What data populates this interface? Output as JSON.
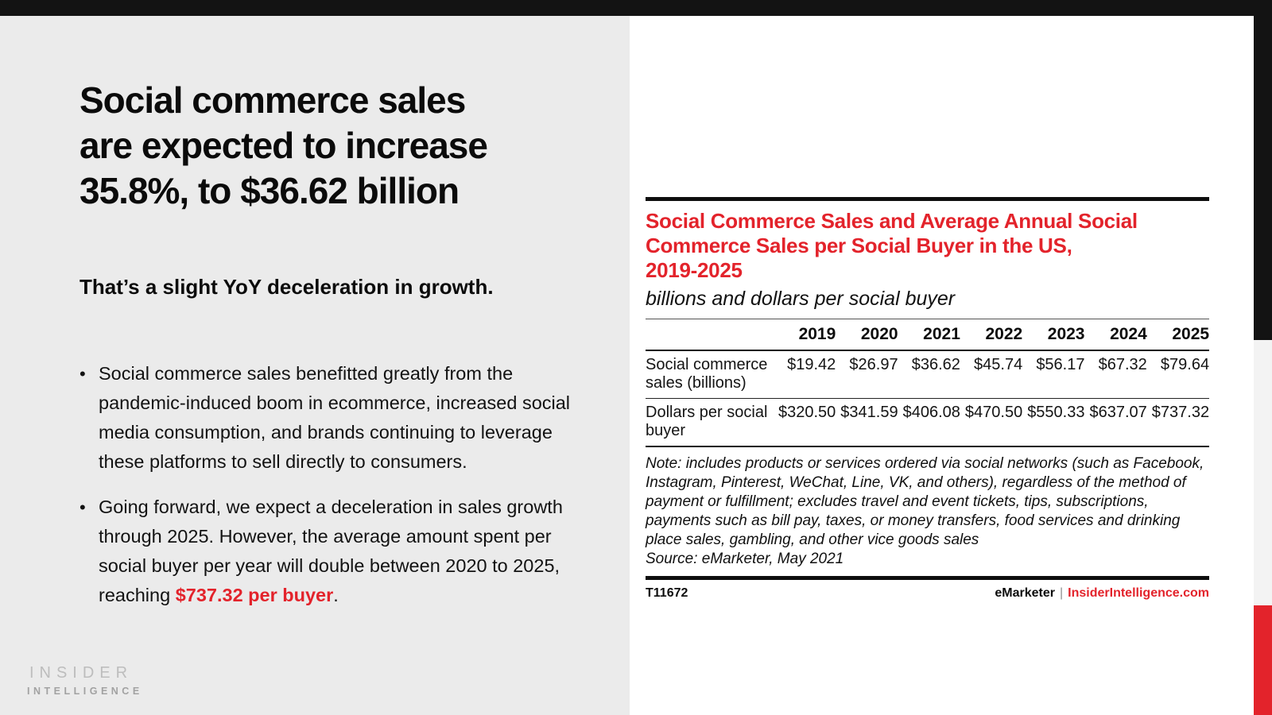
{
  "slide": {
    "headline_lines": [
      "Social commerce sales",
      "are expected to increase",
      "35.8%, to $36.62 billion"
    ],
    "subheadline": "That’s a slight YoY deceleration in growth.",
    "bullet_marker": "•",
    "bullets": [
      {
        "text": "Social commerce sales benefitted greatly from the pandemic-induced boom in ecommerce, increased social media consumption, and brands continuing to leverage these platforms to sell directly to consumers."
      },
      {
        "text_before": "Going forward, we expect a deceleration in sales growth through 2025. However, the average amount spent per social buyer per year will double between 2020 to 2025, reaching ",
        "highlight": "$737.32 per buyer",
        "text_after": "."
      }
    ],
    "logo": {
      "line1": "INSIDER",
      "line2": "INTELLIGENCE"
    }
  },
  "chart": {
    "title_lines": [
      "Social Commerce Sales and Average Annual Social",
      "Commerce Sales per Social Buyer in the US,",
      "2019-2025"
    ],
    "subtitle": "billions and dollars per social buyer",
    "note": "Note: includes products or services ordered via social networks (such as Facebook, Instagram, Pinterest, WeChat, Line, VK, and others), regardless of the method of payment or fulfillment; excludes travel and event tickets, tips, subscriptions, payments such as bill pay, taxes, or money transfers, food services and drinking place sales, gambling, and other vice goods sales",
    "source": "Source: eMarketer, May 2021",
    "footer": {
      "id": "T11672",
      "brand": "eMarketer",
      "separator": "|",
      "site": "InsiderIntelligence.com"
    }
  },
  "chart_data": {
    "type": "table",
    "title": "Social Commerce Sales and Average Annual Social Commerce Sales per Social Buyer in the US, 2019-2025",
    "subtitle": "billions and dollars per social buyer",
    "categories": [
      "2019",
      "2020",
      "2021",
      "2022",
      "2023",
      "2024",
      "2025"
    ],
    "series": [
      {
        "name": "Social commerce sales (billions)",
        "values": [
          "$19.42",
          "$26.97",
          "$36.62",
          "$45.74",
          "$56.17",
          "$67.32",
          "$79.64"
        ]
      },
      {
        "name": "Dollars per social buyer",
        "values": [
          "$320.50",
          "$341.59",
          "$406.08",
          "$470.50",
          "$550.33",
          "$637.07",
          "$737.32"
        ]
      }
    ]
  },
  "colors": {
    "accent_red": "#e3232b",
    "chrome_black": "#131313",
    "panel_gray": "#ebebeb",
    "strip_gray": "#f3f3f3"
  }
}
